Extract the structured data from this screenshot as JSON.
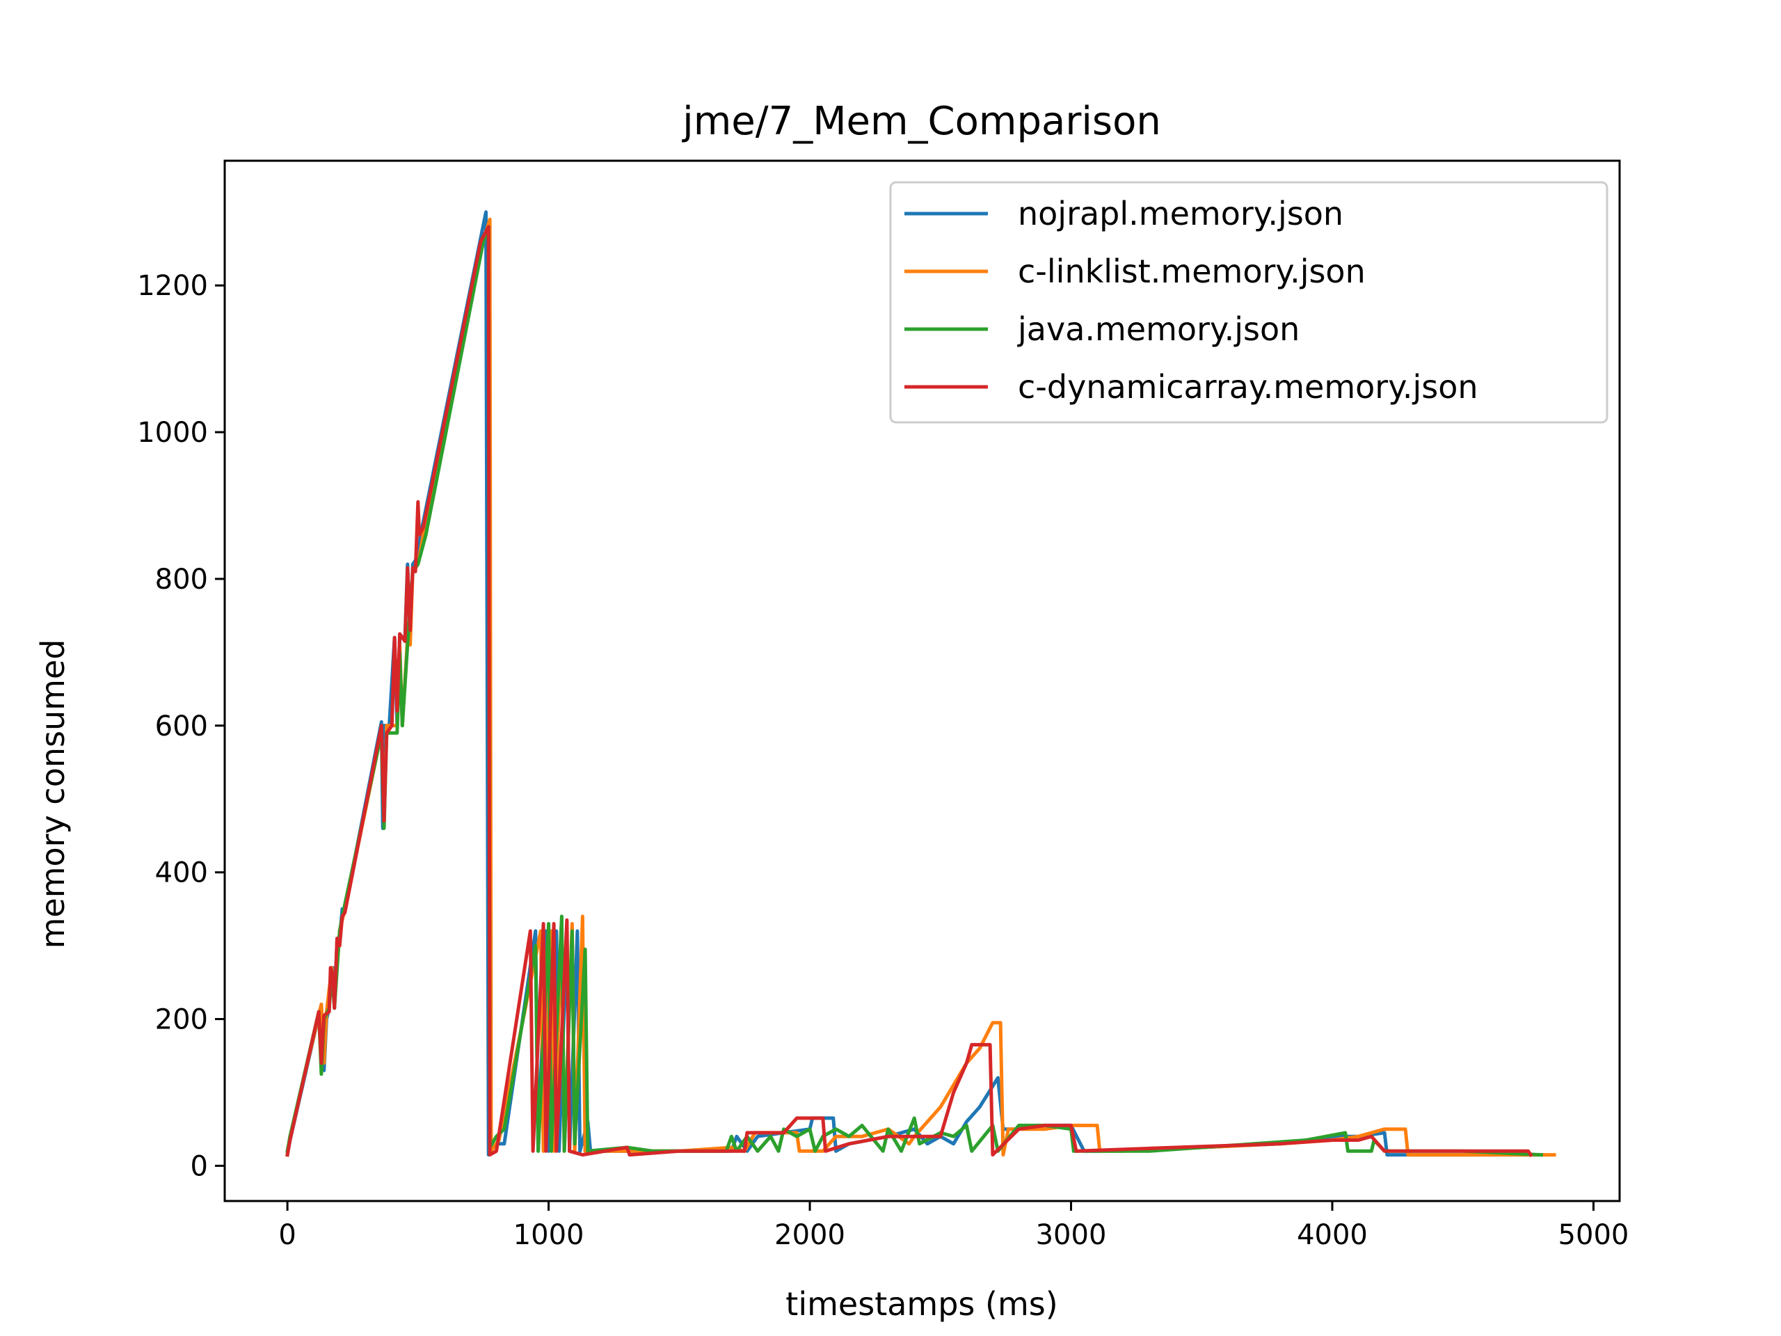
{
  "chart_data": {
    "type": "line",
    "title": "jme/7_Mem_Comparison",
    "xlabel": "timestamps (ms)",
    "ylabel": "memory consumed",
    "xlim": [
      -240,
      5100
    ],
    "ylim": [
      -48,
      1370
    ],
    "xticks": [
      0,
      1000,
      2000,
      3000,
      4000,
      5000
    ],
    "yticks": [
      0,
      200,
      400,
      600,
      800,
      1000,
      1200
    ],
    "grid": false,
    "legend_position": "top-right",
    "series": [
      {
        "name": "nojrapl.memory.json",
        "color": "#1f77b4",
        "points": [
          [
            0,
            15
          ],
          [
            10,
            35
          ],
          [
            130,
            220
          ],
          [
            140,
            130
          ],
          [
            150,
            200
          ],
          [
            160,
            215
          ],
          [
            165,
            260
          ],
          [
            175,
            270
          ],
          [
            180,
            215
          ],
          [
            190,
            310
          ],
          [
            200,
            310
          ],
          [
            210,
            350
          ],
          [
            220,
            350
          ],
          [
            360,
            605
          ],
          [
            365,
            460
          ],
          [
            370,
            600
          ],
          [
            390,
            600
          ],
          [
            410,
            720
          ],
          [
            420,
            600
          ],
          [
            430,
            720
          ],
          [
            450,
            720
          ],
          [
            460,
            820
          ],
          [
            470,
            720
          ],
          [
            480,
            820
          ],
          [
            500,
            830
          ],
          [
            510,
            860
          ],
          [
            740,
            1265
          ],
          [
            760,
            1300
          ],
          [
            770,
            15
          ],
          [
            800,
            30
          ],
          [
            830,
            30
          ],
          [
            950,
            320
          ],
          [
            960,
            20
          ],
          [
            990,
            320
          ],
          [
            1000,
            20
          ],
          [
            1030,
            320
          ],
          [
            1040,
            20
          ],
          [
            1070,
            320
          ],
          [
            1080,
            20
          ],
          [
            1110,
            320
          ],
          [
            1120,
            20
          ],
          [
            1150,
            60
          ],
          [
            1160,
            20
          ],
          [
            1300,
            20
          ],
          [
            1400,
            20
          ],
          [
            1700,
            20
          ],
          [
            1720,
            40
          ],
          [
            1760,
            20
          ],
          [
            1800,
            40
          ],
          [
            1900,
            45
          ],
          [
            2000,
            50
          ],
          [
            2010,
            65
          ],
          [
            2090,
            65
          ],
          [
            2100,
            20
          ],
          [
            2150,
            30
          ],
          [
            2300,
            40
          ],
          [
            2400,
            50
          ],
          [
            2450,
            30
          ],
          [
            2500,
            40
          ],
          [
            2550,
            30
          ],
          [
            2600,
            60
          ],
          [
            2650,
            80
          ],
          [
            2720,
            120
          ],
          [
            2740,
            50
          ],
          [
            2800,
            50
          ],
          [
            2900,
            55
          ],
          [
            3000,
            55
          ],
          [
            3050,
            20
          ],
          [
            3100,
            20
          ],
          [
            3500,
            25
          ],
          [
            3800,
            30
          ],
          [
            4000,
            40
          ],
          [
            4100,
            40
          ],
          [
            4200,
            45
          ],
          [
            4210,
            15
          ],
          [
            4500,
            15
          ],
          [
            4800,
            15
          ]
        ]
      },
      {
        "name": "c-linklist.memory.json",
        "color": "#ff7f0e",
        "points": [
          [
            0,
            15
          ],
          [
            10,
            40
          ],
          [
            130,
            220
          ],
          [
            140,
            140
          ],
          [
            150,
            210
          ],
          [
            170,
            270
          ],
          [
            180,
            220
          ],
          [
            200,
            320
          ],
          [
            220,
            350
          ],
          [
            360,
            590
          ],
          [
            370,
            470
          ],
          [
            380,
            600
          ],
          [
            420,
            600
          ],
          [
            430,
            710
          ],
          [
            440,
            600
          ],
          [
            460,
            720
          ],
          [
            470,
            710
          ],
          [
            480,
            810
          ],
          [
            500,
            820
          ],
          [
            520,
            860
          ],
          [
            750,
            1260
          ],
          [
            775,
            1290
          ],
          [
            780,
            20
          ],
          [
            810,
            35
          ],
          [
            970,
            320
          ],
          [
            980,
            20
          ],
          [
            1010,
            320
          ],
          [
            1020,
            20
          ],
          [
            1050,
            320
          ],
          [
            1060,
            20
          ],
          [
            1090,
            330
          ],
          [
            1100,
            20
          ],
          [
            1130,
            340
          ],
          [
            1140,
            20
          ],
          [
            1300,
            20
          ],
          [
            1500,
            20
          ],
          [
            1700,
            25
          ],
          [
            1750,
            20
          ],
          [
            1790,
            45
          ],
          [
            1900,
            45
          ],
          [
            1950,
            45
          ],
          [
            1960,
            20
          ],
          [
            2050,
            20
          ],
          [
            2100,
            40
          ],
          [
            2200,
            40
          ],
          [
            2300,
            50
          ],
          [
            2380,
            30
          ],
          [
            2400,
            40
          ],
          [
            2500,
            80
          ],
          [
            2550,
            110
          ],
          [
            2600,
            140
          ],
          [
            2650,
            160
          ],
          [
            2700,
            195
          ],
          [
            2730,
            195
          ],
          [
            2740,
            15
          ],
          [
            2760,
            50
          ],
          [
            2900,
            50
          ],
          [
            3000,
            55
          ],
          [
            3100,
            55
          ],
          [
            3110,
            20
          ],
          [
            3200,
            20
          ],
          [
            3500,
            25
          ],
          [
            3800,
            30
          ],
          [
            4000,
            35
          ],
          [
            4100,
            40
          ],
          [
            4200,
            50
          ],
          [
            4280,
            50
          ],
          [
            4290,
            15
          ],
          [
            4500,
            15
          ],
          [
            4700,
            15
          ],
          [
            4850,
            15
          ]
        ]
      },
      {
        "name": "java.memory.json",
        "color": "#2ca02c",
        "points": [
          [
            0,
            20
          ],
          [
            10,
            40
          ],
          [
            120,
            210
          ],
          [
            130,
            125
          ],
          [
            140,
            200
          ],
          [
            160,
            215
          ],
          [
            170,
            265
          ],
          [
            180,
            215
          ],
          [
            200,
            320
          ],
          [
            210,
            340
          ],
          [
            360,
            590
          ],
          [
            370,
            460
          ],
          [
            380,
            590
          ],
          [
            420,
            590
          ],
          [
            430,
            700
          ],
          [
            440,
            600
          ],
          [
            460,
            710
          ],
          [
            480,
            810
          ],
          [
            500,
            820
          ],
          [
            530,
            860
          ],
          [
            750,
            1260
          ],
          [
            770,
            1280
          ],
          [
            775,
            25
          ],
          [
            800,
            40
          ],
          [
            830,
            50
          ],
          [
            950,
            300
          ],
          [
            960,
            20
          ],
          [
            1000,
            330
          ],
          [
            1010,
            20
          ],
          [
            1050,
            340
          ],
          [
            1060,
            20
          ],
          [
            1090,
            320
          ],
          [
            1100,
            30
          ],
          [
            1140,
            295
          ],
          [
            1150,
            20
          ],
          [
            1300,
            25
          ],
          [
            1400,
            20
          ],
          [
            1680,
            20
          ],
          [
            1700,
            40
          ],
          [
            1720,
            20
          ],
          [
            1760,
            40
          ],
          [
            1800,
            20
          ],
          [
            1850,
            40
          ],
          [
            1880,
            20
          ],
          [
            1900,
            50
          ],
          [
            1950,
            40
          ],
          [
            2000,
            50
          ],
          [
            2020,
            20
          ],
          [
            2050,
            40
          ],
          [
            2100,
            50
          ],
          [
            2150,
            40
          ],
          [
            2200,
            55
          ],
          [
            2280,
            20
          ],
          [
            2300,
            50
          ],
          [
            2350,
            20
          ],
          [
            2400,
            65
          ],
          [
            2420,
            30
          ],
          [
            2500,
            45
          ],
          [
            2550,
            40
          ],
          [
            2600,
            55
          ],
          [
            2620,
            20
          ],
          [
            2700,
            55
          ],
          [
            2720,
            20
          ],
          [
            2800,
            55
          ],
          [
            2900,
            55
          ],
          [
            3000,
            50
          ],
          [
            3010,
            20
          ],
          [
            3300,
            20
          ],
          [
            3500,
            25
          ],
          [
            3700,
            30
          ],
          [
            3900,
            35
          ],
          [
            4050,
            45
          ],
          [
            4060,
            20
          ],
          [
            4150,
            20
          ],
          [
            4160,
            35
          ],
          [
            4200,
            20
          ],
          [
            4500,
            20
          ],
          [
            4800,
            15
          ]
        ]
      },
      {
        "name": "c-dynamicarray.memory.json",
        "color": "#d62728",
        "points": [
          [
            0,
            15
          ],
          [
            10,
            35
          ],
          [
            120,
            210
          ],
          [
            130,
            140
          ],
          [
            140,
            205
          ],
          [
            160,
            210
          ],
          [
            165,
            270
          ],
          [
            175,
            260
          ],
          [
            180,
            215
          ],
          [
            190,
            310
          ],
          [
            200,
            300
          ],
          [
            210,
            340
          ],
          [
            220,
            345
          ],
          [
            360,
            600
          ],
          [
            370,
            470
          ],
          [
            380,
            590
          ],
          [
            400,
            600
          ],
          [
            410,
            720
          ],
          [
            420,
            620
          ],
          [
            430,
            725
          ],
          [
            450,
            715
          ],
          [
            460,
            815
          ],
          [
            470,
            730
          ],
          [
            480,
            815
          ],
          [
            490,
            810
          ],
          [
            500,
            905
          ],
          [
            505,
            860
          ],
          [
            520,
            870
          ],
          [
            740,
            1260
          ],
          [
            770,
            1280
          ],
          [
            775,
            15
          ],
          [
            800,
            20
          ],
          [
            930,
            320
          ],
          [
            940,
            20
          ],
          [
            980,
            330
          ],
          [
            990,
            20
          ],
          [
            1020,
            330
          ],
          [
            1030,
            20
          ],
          [
            1070,
            335
          ],
          [
            1080,
            20
          ],
          [
            1130,
            15
          ],
          [
            1300,
            25
          ],
          [
            1310,
            15
          ],
          [
            1500,
            20
          ],
          [
            1750,
            20
          ],
          [
            1760,
            45
          ],
          [
            1900,
            45
          ],
          [
            1950,
            65
          ],
          [
            2050,
            65
          ],
          [
            2060,
            20
          ],
          [
            2150,
            30
          ],
          [
            2300,
            40
          ],
          [
            2400,
            40
          ],
          [
            2500,
            40
          ],
          [
            2550,
            100
          ],
          [
            2600,
            140
          ],
          [
            2620,
            165
          ],
          [
            2690,
            165
          ],
          [
            2700,
            15
          ],
          [
            2800,
            50
          ],
          [
            2900,
            55
          ],
          [
            3000,
            55
          ],
          [
            3020,
            20
          ],
          [
            3400,
            25
          ],
          [
            3800,
            30
          ],
          [
            4000,
            35
          ],
          [
            4100,
            35
          ],
          [
            4150,
            40
          ],
          [
            4200,
            20
          ],
          [
            4500,
            20
          ],
          [
            4750,
            20
          ],
          [
            4760,
            15
          ]
        ]
      }
    ]
  }
}
